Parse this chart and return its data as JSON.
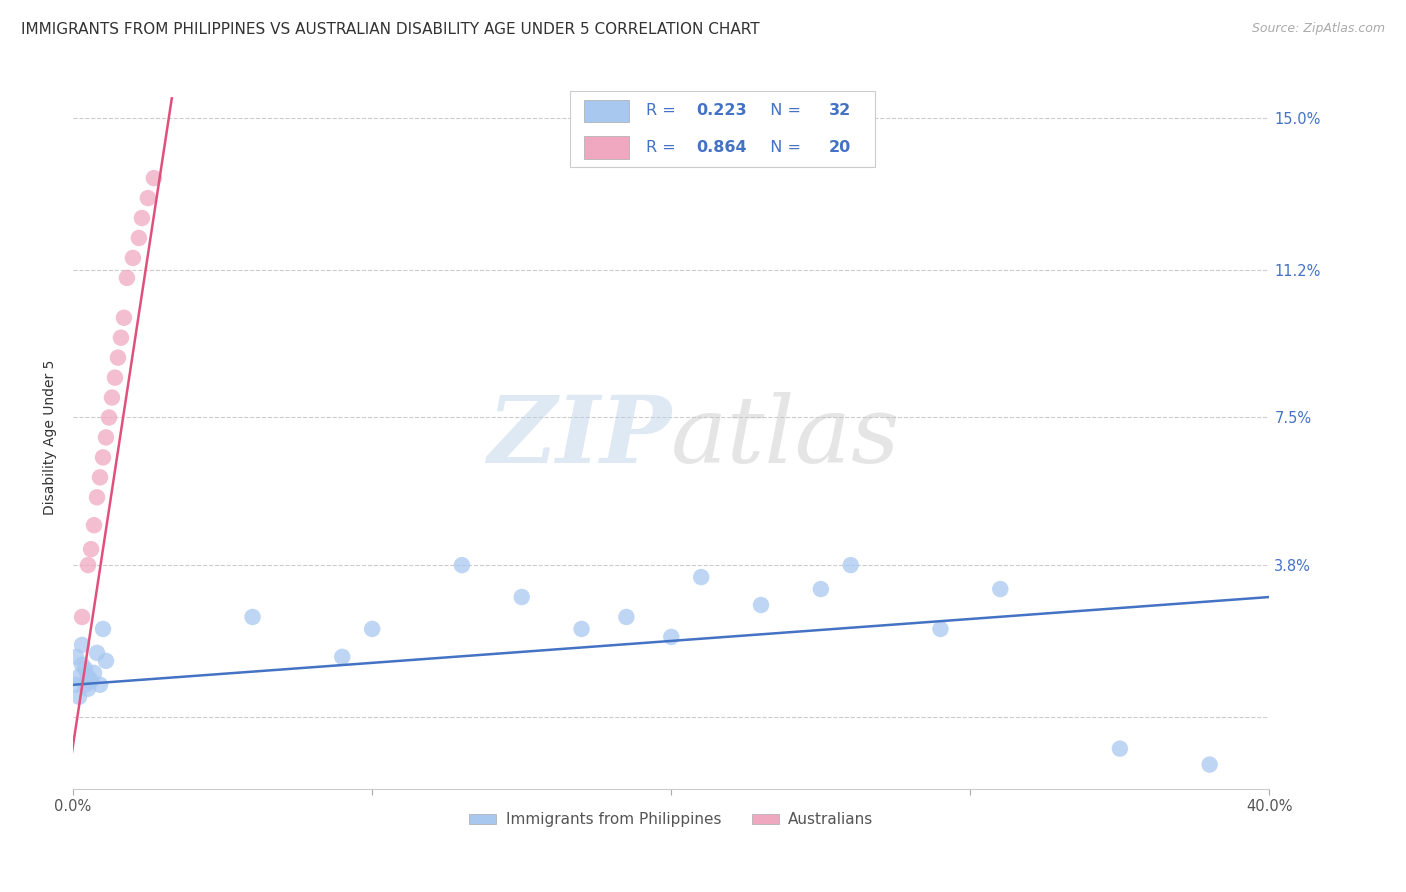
{
  "title": "IMMIGRANTS FROM PHILIPPINES VS AUSTRALIAN DISABILITY AGE UNDER 5 CORRELATION CHART",
  "source": "Source: ZipAtlas.com",
  "ylabel": "Disability Age Under 5",
  "legend_label1": "Immigrants from Philippines",
  "legend_label2": "Australians",
  "R1": 0.223,
  "N1": 32,
  "R2": 0.864,
  "N2": 20,
  "color1": "#a8c8f0",
  "color2": "#f0a8c0",
  "line_color1": "#4472c4",
  "line_color2": "#e0507a",
  "legend_text_color": "#4472c4",
  "x_min": 0.0,
  "x_max": 0.4,
  "y_min": -0.018,
  "y_max": 0.158,
  "y_ticks": [
    0.0,
    0.038,
    0.075,
    0.112,
    0.15
  ],
  "y_tick_labels": [
    "",
    "3.8%",
    "7.5%",
    "11.2%",
    "15.0%"
  ],
  "x_ticks": [
    0.0,
    0.1,
    0.2,
    0.3,
    0.4
  ],
  "x_tick_labels": [
    "0.0%",
    "",
    "",
    "",
    "40.0%"
  ],
  "watermark": "ZIPatlas",
  "title_fontsize": 11,
  "axis_label_fontsize": 10,
  "tick_fontsize": 10.5,
  "blue_x": [
    0.001,
    0.001,
    0.002,
    0.002,
    0.003,
    0.003,
    0.004,
    0.004,
    0.005,
    0.005,
    0.006,
    0.007,
    0.008,
    0.009,
    0.01,
    0.011,
    0.06,
    0.09,
    0.1,
    0.13,
    0.15,
    0.17,
    0.185,
    0.2,
    0.21,
    0.23,
    0.25,
    0.26,
    0.29,
    0.31,
    0.35,
    0.38
  ],
  "blue_y": [
    0.008,
    0.015,
    0.01,
    0.005,
    0.013,
    0.018,
    0.008,
    0.012,
    0.01,
    0.007,
    0.009,
    0.011,
    0.016,
    0.008,
    0.022,
    0.014,
    0.025,
    0.015,
    0.022,
    0.038,
    0.03,
    0.022,
    0.025,
    0.02,
    0.035,
    0.028,
    0.032,
    0.038,
    0.022,
    0.032,
    -0.008,
    -0.012
  ],
  "pink_x": [
    0.003,
    0.005,
    0.006,
    0.007,
    0.008,
    0.009,
    0.01,
    0.011,
    0.012,
    0.013,
    0.014,
    0.015,
    0.016,
    0.017,
    0.018,
    0.02,
    0.022,
    0.023,
    0.025,
    0.027
  ],
  "pink_y": [
    0.025,
    0.038,
    0.042,
    0.048,
    0.055,
    0.06,
    0.065,
    0.07,
    0.075,
    0.08,
    0.085,
    0.09,
    0.095,
    0.1,
    0.11,
    0.115,
    0.12,
    0.125,
    0.13,
    0.135
  ],
  "blue_line_x": [
    0.0,
    0.4
  ],
  "blue_line_y": [
    0.008,
    0.03
  ],
  "pink_line_x": [
    -0.001,
    0.033
  ],
  "pink_line_y": [
    -0.012,
    0.155
  ]
}
